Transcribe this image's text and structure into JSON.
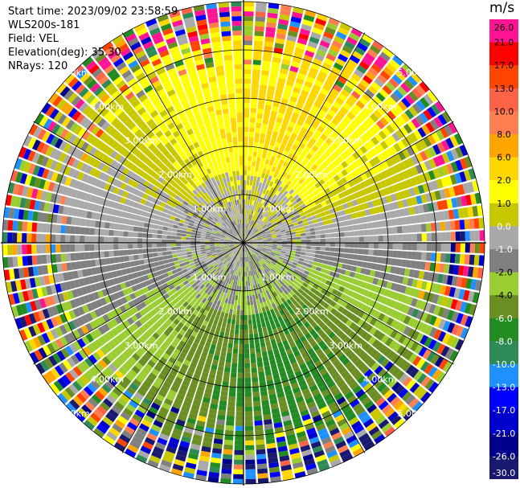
{
  "info": {
    "start_time": "Start time: 2023/09/02 23:58:59",
    "instrument": "WLS200s-181",
    "field": "Field: VEL",
    "elevation": "Elevation(deg): 35.30",
    "nrays": "NRays: 120"
  },
  "chart_data": {
    "type": "heatmap",
    "subtype": "polar-ppi",
    "field": "VEL",
    "units": "m/s",
    "n_rays": 120,
    "range_rings_km": [
      1.0,
      2.0,
      3.0,
      4.0,
      5.0
    ],
    "ring_label_texts": [
      "1.00km",
      "2.00km",
      "3.00km",
      "4.00km",
      "5.00km"
    ],
    "max_range_km": 5.0,
    "grid": true,
    "colorbar": {
      "title": "m/s",
      "ticks": [
        "26.0",
        "21.0",
        "17.0",
        "13.0",
        "10.0",
        "8.0",
        "6.0",
        "2.0",
        "1.0",
        "0.0",
        "-1.0",
        "-2.0",
        "-4.0",
        "-6.0",
        "-8.0",
        "-10.0",
        "-13.0",
        "-17.0",
        "-21.0",
        "-26.0",
        "-30.0"
      ],
      "colors": [
        "#ff1493",
        "#ff0000",
        "#ff4500",
        "#ff6347",
        "#ff7f50",
        "#ffa500",
        "#ffd700",
        "#ffff00",
        "#c8c800",
        "#a9a9a9",
        "#808080",
        "#9acd32",
        "#6b8e23",
        "#228b22",
        "#2e8b57",
        "#1e90ff",
        "#0000ff",
        "#0000cd",
        "#00008b",
        "#191970"
      ],
      "vmin": -30.0,
      "vmax": 30.0
    }
  }
}
